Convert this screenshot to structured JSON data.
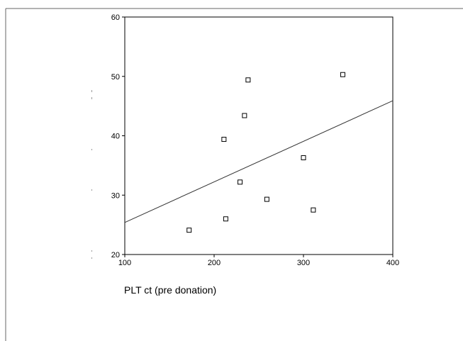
{
  "chart_data": {
    "type": "scatter",
    "title": "",
    "xlabel": "PLT ct (pre donation)",
    "ylabel": "",
    "xlim": [
      100,
      400
    ],
    "ylim": [
      20,
      60
    ],
    "xticks": [
      100,
      200,
      300,
      400
    ],
    "yticks": [
      20,
      30,
      40,
      50,
      60
    ],
    "grid": false,
    "marker": "open-square",
    "points": [
      {
        "x": 172,
        "y": 24.1
      },
      {
        "x": 213,
        "y": 26.0
      },
      {
        "x": 211,
        "y": 39.4
      },
      {
        "x": 229,
        "y": 32.2
      },
      {
        "x": 234,
        "y": 43.4
      },
      {
        "x": 238,
        "y": 49.4
      },
      {
        "x": 259,
        "y": 29.3
      },
      {
        "x": 300,
        "y": 36.3
      },
      {
        "x": 311,
        "y": 27.5
      },
      {
        "x": 344,
        "y": 50.3
      }
    ],
    "fit_line": {
      "type": "linear",
      "x": [
        100,
        400
      ],
      "y": [
        25.4,
        45.9
      ]
    },
    "colors": {
      "axis": "#000000",
      "marker": "#000000",
      "line": "#333333",
      "border": "#666666"
    }
  }
}
